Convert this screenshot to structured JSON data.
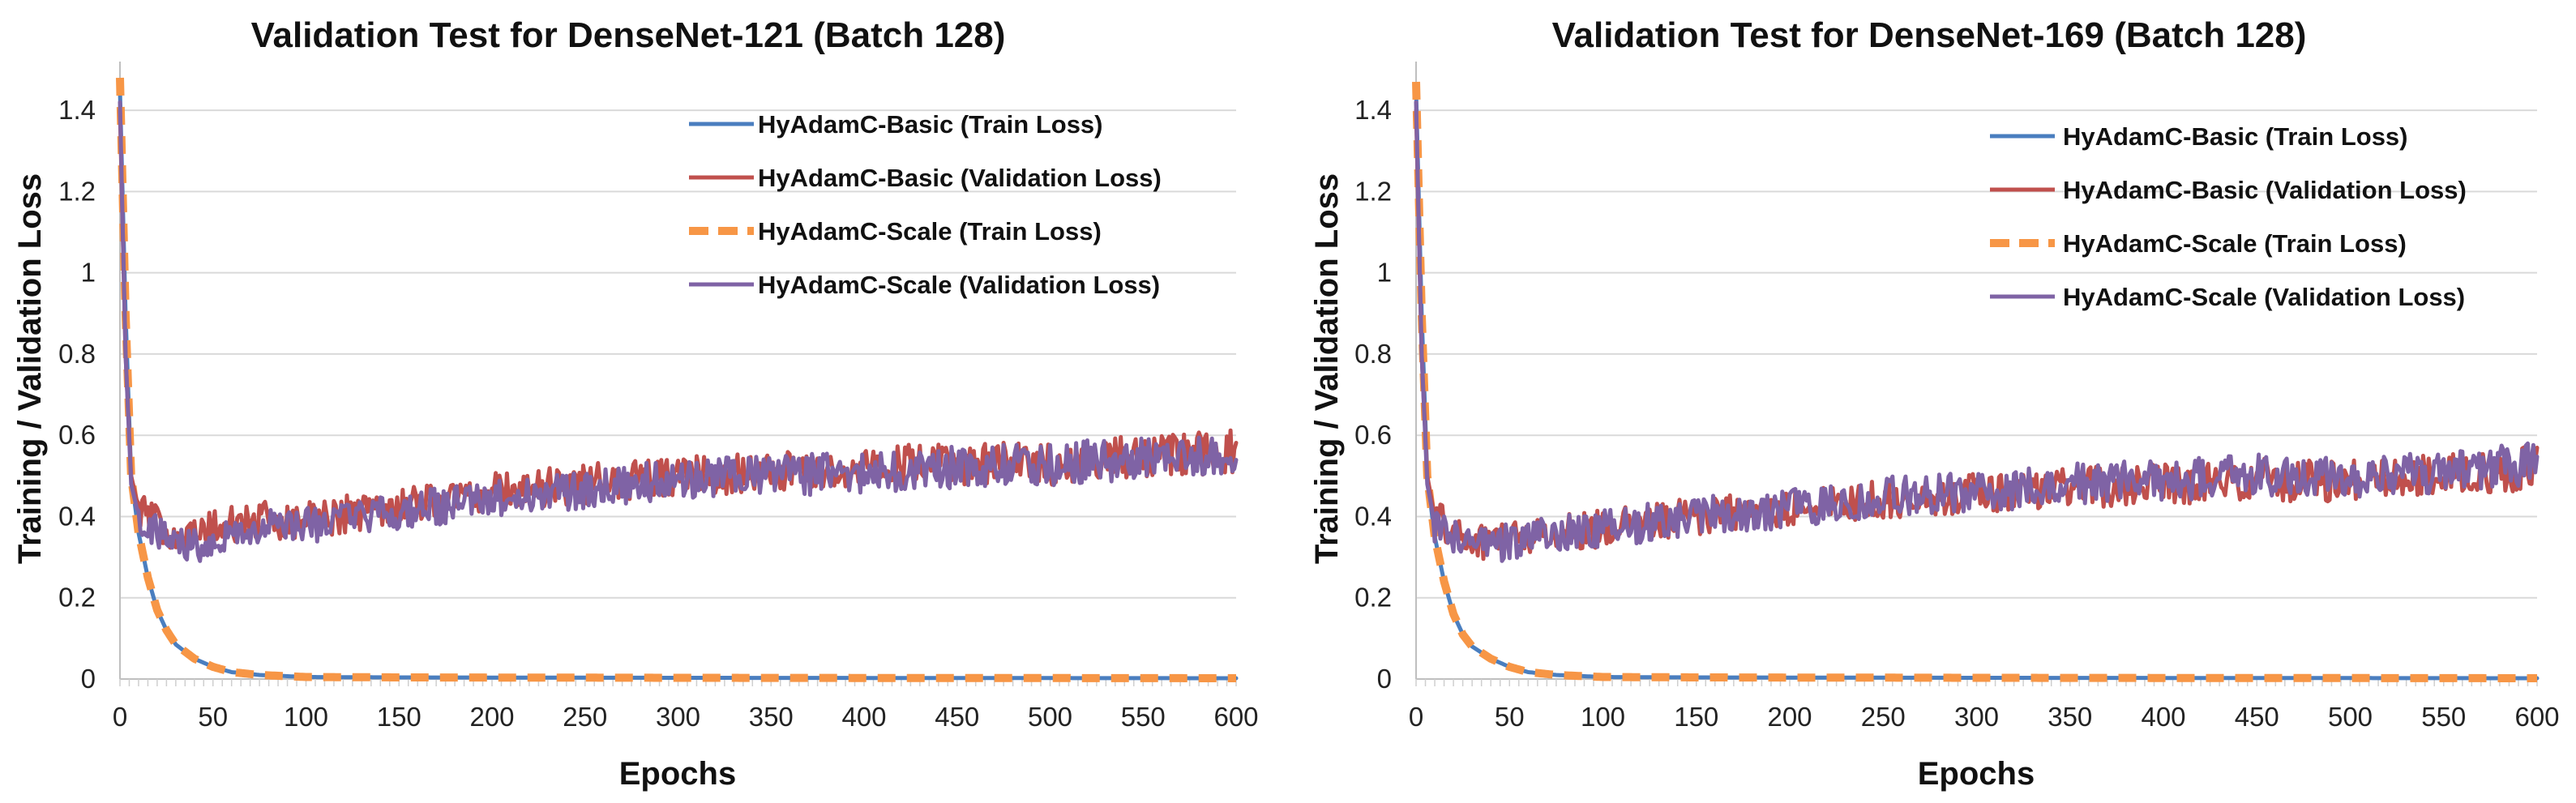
{
  "chart_data": [
    {
      "type": "line",
      "title": "Validation Test for DenseNet-121 (Batch 128)",
      "xlabel": "Epochs",
      "ylabel": "Training / Validation Loss",
      "xlim": [
        0,
        600
      ],
      "ylim": [
        0,
        1.5
      ],
      "xticks": [
        0,
        50,
        100,
        150,
        200,
        250,
        300,
        350,
        400,
        450,
        500,
        550,
        600
      ],
      "yticks": [
        0,
        0.2,
        0.4,
        0.6,
        0.8,
        1,
        1.2,
        1.4
      ],
      "ytick_labels": [
        "0",
        "0.2",
        "0.4",
        "0.6",
        "0.8",
        "1",
        "1.2",
        "1.4"
      ],
      "grid": "horizontal",
      "legend_position": "top-right",
      "series": [
        {
          "name": "HyAdamC-Basic (Train Loss)",
          "color": "#4a7ebf",
          "style": "solid",
          "kind": "train",
          "points": [
            [
              0,
              1.45
            ],
            [
              3,
              0.9
            ],
            [
              6,
              0.5
            ],
            [
              10,
              0.36
            ],
            [
              15,
              0.25
            ],
            [
              20,
              0.17
            ],
            [
              25,
              0.12
            ],
            [
              30,
              0.085
            ],
            [
              40,
              0.05
            ],
            [
              50,
              0.03
            ],
            [
              60,
              0.017
            ],
            [
              75,
              0.01
            ],
            [
              100,
              0.005
            ],
            [
              150,
              0.004
            ],
            [
              300,
              0.003
            ],
            [
              600,
              0.002
            ]
          ]
        },
        {
          "name": "HyAdamC-Basic (Validation Loss)",
          "color": "#c0504d",
          "style": "solid",
          "kind": "val",
          "points": [
            [
              0,
              1.4
            ],
            [
              3,
              0.8
            ],
            [
              6,
              0.5
            ],
            [
              10,
              0.42
            ],
            [
              20,
              0.38
            ],
            [
              30,
              0.36
            ],
            [
              40,
              0.35
            ],
            [
              50,
              0.37
            ],
            [
              75,
              0.39
            ],
            [
              100,
              0.39
            ],
            [
              150,
              0.43
            ],
            [
              200,
              0.46
            ],
            [
              250,
              0.48
            ],
            [
              300,
              0.5
            ],
            [
              350,
              0.51
            ],
            [
              400,
              0.52
            ],
            [
              450,
              0.53
            ],
            [
              500,
              0.53
            ],
            [
              550,
              0.55
            ],
            [
              600,
              0.56
            ]
          ]
        },
        {
          "name": "HyAdamC-Scale (Train Loss)",
          "color": "#f79646",
          "style": "dashed",
          "kind": "train",
          "points": [
            [
              0,
              1.48
            ],
            [
              3,
              0.9
            ],
            [
              6,
              0.5
            ],
            [
              10,
              0.36
            ],
            [
              15,
              0.25
            ],
            [
              20,
              0.17
            ],
            [
              25,
              0.12
            ],
            [
              30,
              0.085
            ],
            [
              40,
              0.05
            ],
            [
              50,
              0.03
            ],
            [
              60,
              0.017
            ],
            [
              75,
              0.01
            ],
            [
              100,
              0.005
            ],
            [
              150,
              0.004
            ],
            [
              300,
              0.003
            ],
            [
              600,
              0.002
            ]
          ]
        },
        {
          "name": "HyAdamC-Scale (Validation Loss)",
          "color": "#7f63a5",
          "style": "solid",
          "kind": "val",
          "points": [
            [
              0,
              1.42
            ],
            [
              3,
              0.8
            ],
            [
              6,
              0.48
            ],
            [
              10,
              0.4
            ],
            [
              20,
              0.36
            ],
            [
              30,
              0.34
            ],
            [
              40,
              0.33
            ],
            [
              50,
              0.35
            ],
            [
              75,
              0.37
            ],
            [
              100,
              0.38
            ],
            [
              150,
              0.41
            ],
            [
              200,
              0.44
            ],
            [
              250,
              0.47
            ],
            [
              300,
              0.49
            ],
            [
              350,
              0.5
            ],
            [
              400,
              0.51
            ],
            [
              450,
              0.52
            ],
            [
              500,
              0.53
            ],
            [
              550,
              0.54
            ],
            [
              600,
              0.55
            ]
          ]
        }
      ]
    },
    {
      "type": "line",
      "title": "Validation Test for DenseNet-169 (Batch 128)",
      "xlabel": "Epochs",
      "ylabel": "Training / Validation Loss",
      "xlim": [
        0,
        600
      ],
      "ylim": [
        0,
        1.5
      ],
      "xticks": [
        0,
        50,
        100,
        150,
        200,
        250,
        300,
        350,
        400,
        450,
        500,
        550,
        600
      ],
      "yticks": [
        0,
        0.2,
        0.4,
        0.6,
        0.8,
        1,
        1.2,
        1.4
      ],
      "ytick_labels": [
        "0",
        "0.2",
        "0.4",
        "0.6",
        "0.8",
        "1",
        "1.2",
        "1.4"
      ],
      "grid": "horizontal",
      "legend_position": "top-right",
      "series": [
        {
          "name": "HyAdamC-Basic (Train Loss)",
          "color": "#4a7ebf",
          "style": "solid",
          "kind": "train",
          "points": [
            [
              0,
              1.45
            ],
            [
              3,
              0.9
            ],
            [
              6,
              0.5
            ],
            [
              10,
              0.35
            ],
            [
              15,
              0.24
            ],
            [
              20,
              0.16
            ],
            [
              25,
              0.11
            ],
            [
              30,
              0.08
            ],
            [
              40,
              0.05
            ],
            [
              50,
              0.03
            ],
            [
              60,
              0.017
            ],
            [
              75,
              0.01
            ],
            [
              100,
              0.005
            ],
            [
              150,
              0.004
            ],
            [
              300,
              0.003
            ],
            [
              600,
              0.002
            ]
          ]
        },
        {
          "name": "HyAdamC-Basic (Validation Loss)",
          "color": "#c0504d",
          "style": "solid",
          "kind": "val",
          "points": [
            [
              0,
              1.4
            ],
            [
              3,
              0.8
            ],
            [
              6,
              0.5
            ],
            [
              10,
              0.4
            ],
            [
              20,
              0.36
            ],
            [
              30,
              0.34
            ],
            [
              40,
              0.34
            ],
            [
              50,
              0.35
            ],
            [
              75,
              0.36
            ],
            [
              100,
              0.37
            ],
            [
              150,
              0.4
            ],
            [
              200,
              0.42
            ],
            [
              250,
              0.44
            ],
            [
              300,
              0.46
            ],
            [
              350,
              0.47
            ],
            [
              400,
              0.48
            ],
            [
              450,
              0.49
            ],
            [
              500,
              0.49
            ],
            [
              550,
              0.5
            ],
            [
              600,
              0.52
            ]
          ]
        },
        {
          "name": "HyAdamC-Scale (Train Loss)",
          "color": "#f79646",
          "style": "dashed",
          "kind": "train",
          "points": [
            [
              0,
              1.47
            ],
            [
              3,
              0.9
            ],
            [
              6,
              0.5
            ],
            [
              10,
              0.35
            ],
            [
              15,
              0.24
            ],
            [
              20,
              0.16
            ],
            [
              25,
              0.11
            ],
            [
              30,
              0.08
            ],
            [
              40,
              0.05
            ],
            [
              50,
              0.03
            ],
            [
              60,
              0.017
            ],
            [
              75,
              0.01
            ],
            [
              100,
              0.005
            ],
            [
              150,
              0.004
            ],
            [
              300,
              0.003
            ],
            [
              600,
              0.002
            ]
          ]
        },
        {
          "name": "HyAdamC-Scale (Validation Loss)",
          "color": "#7f63a5",
          "style": "solid",
          "kind": "val",
          "points": [
            [
              0,
              1.42
            ],
            [
              3,
              0.8
            ],
            [
              6,
              0.48
            ],
            [
              10,
              0.38
            ],
            [
              20,
              0.35
            ],
            [
              30,
              0.33
            ],
            [
              40,
              0.33
            ],
            [
              50,
              0.34
            ],
            [
              75,
              0.36
            ],
            [
              100,
              0.37
            ],
            [
              150,
              0.4
            ],
            [
              200,
              0.42
            ],
            [
              250,
              0.45
            ],
            [
              300,
              0.46
            ],
            [
              350,
              0.48
            ],
            [
              400,
              0.49
            ],
            [
              450,
              0.5
            ],
            [
              500,
              0.5
            ],
            [
              550,
              0.51
            ],
            [
              600,
              0.53
            ]
          ]
        }
      ]
    }
  ]
}
